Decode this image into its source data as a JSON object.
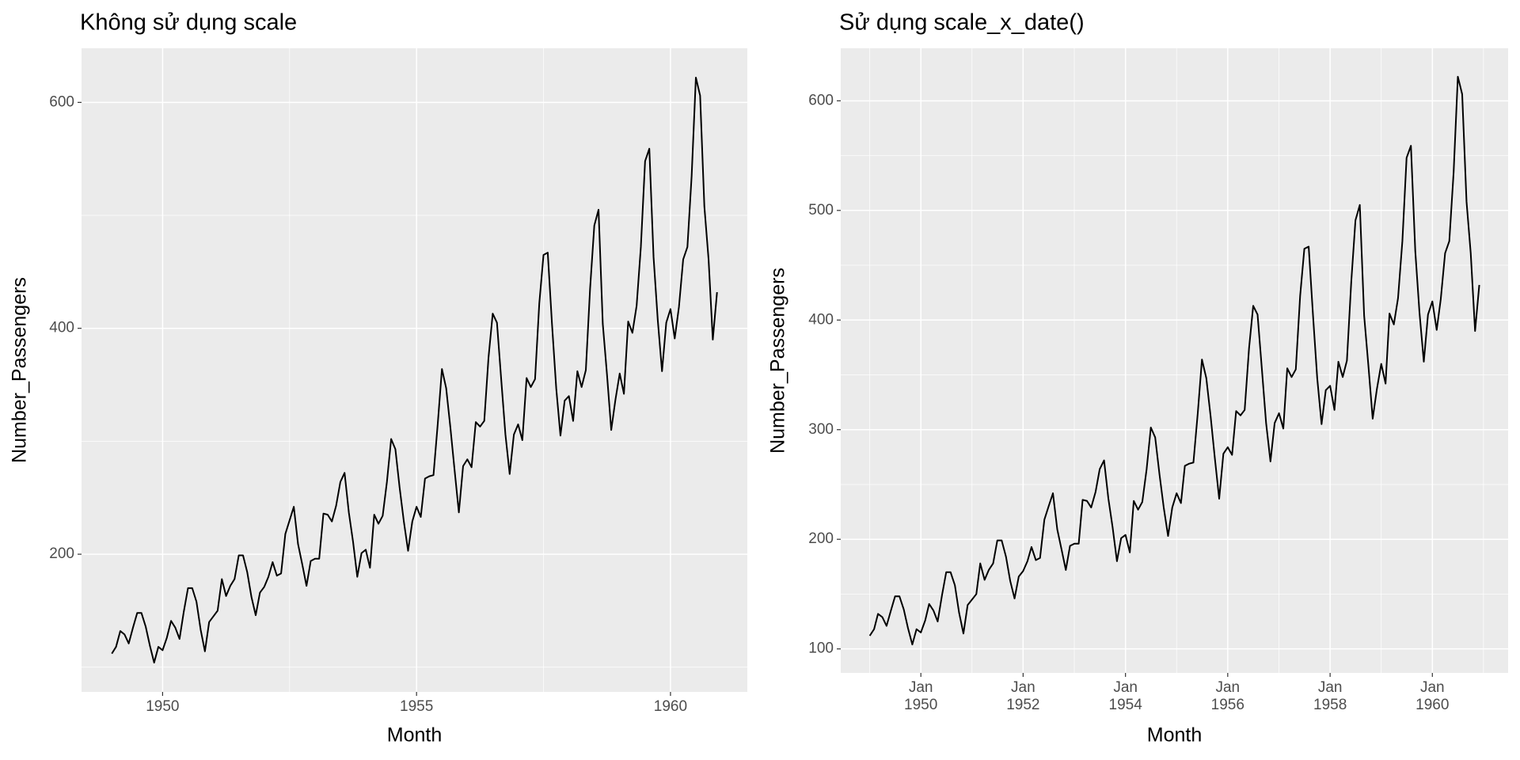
{
  "chart_data": [
    {
      "type": "line",
      "title": "Không sử dụng scale",
      "x_label": "Month",
      "y_label": "Number_Passengers",
      "color": "#000000",
      "grid": true,
      "x": [
        1949,
        1949.0833,
        1949.1667,
        1949.25,
        1949.3333,
        1949.4167,
        1949.5,
        1949.5833,
        1949.6667,
        1949.75,
        1949.8333,
        1949.9167,
        1950,
        1950.0833,
        1950.1667,
        1950.25,
        1950.3333,
        1950.4167,
        1950.5,
        1950.5833,
        1950.6667,
        1950.75,
        1950.8333,
        1950.9167,
        1951,
        1951.0833,
        1951.1667,
        1951.25,
        1951.3333,
        1951.4167,
        1951.5,
        1951.5833,
        1951.6667,
        1951.75,
        1951.8333,
        1951.9167,
        1952,
        1952.0833,
        1952.1667,
        1952.25,
        1952.3333,
        1952.4167,
        1952.5,
        1952.5833,
        1952.6667,
        1952.75,
        1952.8333,
        1952.9167,
        1953,
        1953.0833,
        1953.1667,
        1953.25,
        1953.3333,
        1953.4167,
        1953.5,
        1953.5833,
        1953.6667,
        1953.75,
        1953.8333,
        1953.9167,
        1954,
        1954.0833,
        1954.1667,
        1954.25,
        1954.3333,
        1954.4167,
        1954.5,
        1954.5833,
        1954.6667,
        1954.75,
        1954.8333,
        1954.9167,
        1955,
        1955.0833,
        1955.1667,
        1955.25,
        1955.3333,
        1955.4167,
        1955.5,
        1955.5833,
        1955.6667,
        1955.75,
        1955.8333,
        1955.9167,
        1956,
        1956.0833,
        1956.1667,
        1956.25,
        1956.3333,
        1956.4167,
        1956.5,
        1956.5833,
        1956.6667,
        1956.75,
        1956.8333,
        1956.9167,
        1957,
        1957.0833,
        1957.1667,
        1957.25,
        1957.3333,
        1957.4167,
        1957.5,
        1957.5833,
        1957.6667,
        1957.75,
        1957.8333,
        1957.9167,
        1958,
        1958.0833,
        1958.1667,
        1958.25,
        1958.3333,
        1958.4167,
        1958.5,
        1958.5833,
        1958.6667,
        1958.75,
        1958.8333,
        1958.9167,
        1959,
        1959.0833,
        1959.1667,
        1959.25,
        1959.3333,
        1959.4167,
        1959.5,
        1959.5833,
        1959.6667,
        1959.75,
        1959.8333,
        1959.9167,
        1960,
        1960.0833,
        1960.1667,
        1960.25,
        1960.3333,
        1960.4167,
        1960.5,
        1960.5833,
        1960.6667,
        1960.75,
        1960.8333,
        1960.9167
      ],
      "values": [
        112,
        118,
        132,
        129,
        121,
        135,
        148,
        148,
        136,
        119,
        104,
        118,
        115,
        126,
        141,
        135,
        125,
        149,
        170,
        170,
        158,
        133,
        114,
        140,
        145,
        150,
        178,
        163,
        172,
        178,
        199,
        199,
        184,
        162,
        146,
        166,
        171,
        180,
        193,
        181,
        183,
        218,
        230,
        242,
        209,
        191,
        172,
        194,
        196,
        196,
        236,
        235,
        229,
        243,
        264,
        272,
        237,
        211,
        180,
        201,
        204,
        188,
        235,
        227,
        234,
        264,
        302,
        293,
        259,
        229,
        203,
        229,
        242,
        233,
        267,
        269,
        270,
        315,
        364,
        347,
        312,
        274,
        237,
        278,
        284,
        277,
        317,
        313,
        318,
        374,
        413,
        405,
        355,
        306,
        271,
        306,
        315,
        301,
        356,
        348,
        355,
        422,
        465,
        467,
        404,
        347,
        305,
        336,
        340,
        318,
        362,
        348,
        363,
        435,
        491,
        505,
        404,
        359,
        310,
        337,
        360,
        342,
        406,
        396,
        420,
        472,
        548,
        559,
        463,
        407,
        362,
        405,
        417,
        391,
        419,
        461,
        472,
        535,
        622,
        606,
        508,
        461,
        390,
        432
      ],
      "xlim": [
        1948.404,
        1961.513
      ],
      "xticks": [
        1950,
        1955,
        1960
      ],
      "ylim": [
        78.1,
        647.9
      ],
      "yticks": [
        200,
        400,
        600
      ]
    },
    {
      "type": "line",
      "title": "Sử dụng scale_x_date()",
      "x_label": "Month",
      "y_label": "Number_Passengers",
      "color": "#000000",
      "grid": true,
      "x": [
        "1949-01",
        "1949-02",
        "1949-03",
        "1949-04",
        "1949-05",
        "1949-06",
        "1949-07",
        "1949-08",
        "1949-09",
        "1949-10",
        "1949-11",
        "1949-12",
        "1950-01",
        "1950-02",
        "1950-03",
        "1950-04",
        "1950-05",
        "1950-06",
        "1950-07",
        "1950-08",
        "1950-09",
        "1950-10",
        "1950-11",
        "1950-12",
        "1951-01",
        "1951-02",
        "1951-03",
        "1951-04",
        "1951-05",
        "1951-06",
        "1951-07",
        "1951-08",
        "1951-09",
        "1951-10",
        "1951-11",
        "1951-12",
        "1952-01",
        "1952-02",
        "1952-03",
        "1952-04",
        "1952-05",
        "1952-06",
        "1952-07",
        "1952-08",
        "1952-09",
        "1952-10",
        "1952-11",
        "1952-12",
        "1953-01",
        "1953-02",
        "1953-03",
        "1953-04",
        "1953-05",
        "1953-06",
        "1953-07",
        "1953-08",
        "1953-09",
        "1953-10",
        "1953-11",
        "1953-12",
        "1954-01",
        "1954-02",
        "1954-03",
        "1954-04",
        "1954-05",
        "1954-06",
        "1954-07",
        "1954-08",
        "1954-09",
        "1954-10",
        "1954-11",
        "1954-12",
        "1955-01",
        "1955-02",
        "1955-03",
        "1955-04",
        "1955-05",
        "1955-06",
        "1955-07",
        "1955-08",
        "1955-09",
        "1955-10",
        "1955-11",
        "1955-12",
        "1956-01",
        "1956-02",
        "1956-03",
        "1956-04",
        "1956-05",
        "1956-06",
        "1956-07",
        "1956-08",
        "1956-09",
        "1956-10",
        "1956-11",
        "1956-12",
        "1957-01",
        "1957-02",
        "1957-03",
        "1957-04",
        "1957-05",
        "1957-06",
        "1957-07",
        "1957-08",
        "1957-09",
        "1957-10",
        "1957-11",
        "1957-12",
        "1958-01",
        "1958-02",
        "1958-03",
        "1958-04",
        "1958-05",
        "1958-06",
        "1958-07",
        "1958-08",
        "1958-09",
        "1958-10",
        "1958-11",
        "1958-12",
        "1959-01",
        "1959-02",
        "1959-03",
        "1959-04",
        "1959-05",
        "1959-06",
        "1959-07",
        "1959-08",
        "1959-09",
        "1959-10",
        "1959-11",
        "1959-12",
        "1960-01",
        "1960-02",
        "1960-03",
        "1960-04",
        "1960-05",
        "1960-06",
        "1960-07",
        "1960-08",
        "1960-09",
        "1960-10",
        "1960-11",
        "1960-12"
      ],
      "values": [
        112,
        118,
        132,
        129,
        121,
        135,
        148,
        148,
        136,
        119,
        104,
        118,
        115,
        126,
        141,
        135,
        125,
        149,
        170,
        170,
        158,
        133,
        114,
        140,
        145,
        150,
        178,
        163,
        172,
        178,
        199,
        199,
        184,
        162,
        146,
        166,
        171,
        180,
        193,
        181,
        183,
        218,
        230,
        242,
        209,
        191,
        172,
        194,
        196,
        196,
        236,
        235,
        229,
        243,
        264,
        272,
        237,
        211,
        180,
        201,
        204,
        188,
        235,
        227,
        234,
        264,
        302,
        293,
        259,
        229,
        203,
        229,
        242,
        233,
        267,
        269,
        270,
        315,
        364,
        347,
        312,
        274,
        237,
        278,
        284,
        277,
        317,
        313,
        318,
        374,
        413,
        405,
        355,
        306,
        271,
        306,
        315,
        301,
        356,
        348,
        355,
        422,
        465,
        467,
        404,
        347,
        305,
        336,
        340,
        318,
        362,
        348,
        363,
        435,
        491,
        505,
        404,
        359,
        310,
        337,
        360,
        342,
        406,
        396,
        420,
        472,
        548,
        559,
        463,
        407,
        362,
        405,
        417,
        391,
        419,
        461,
        472,
        535,
        622,
        606,
        508,
        461,
        390,
        432
      ],
      "xlim": [
        "1948-06-08",
        "1961-06-25"
      ],
      "xticks": [
        {
          "value": "1950-01",
          "label": "Jan 1950"
        },
        {
          "value": "1952-01",
          "label": "Jan 1952"
        },
        {
          "value": "1954-01",
          "label": "Jan 1954"
        },
        {
          "value": "1956-01",
          "label": "Jan 1956"
        },
        {
          "value": "1958-01",
          "label": "Jan 1958"
        },
        {
          "value": "1960-01",
          "label": "Jan 1960"
        }
      ],
      "ylim": [
        78.1,
        647.9
      ],
      "yticks": [
        100,
        200,
        300,
        400,
        500,
        600
      ]
    }
  ]
}
